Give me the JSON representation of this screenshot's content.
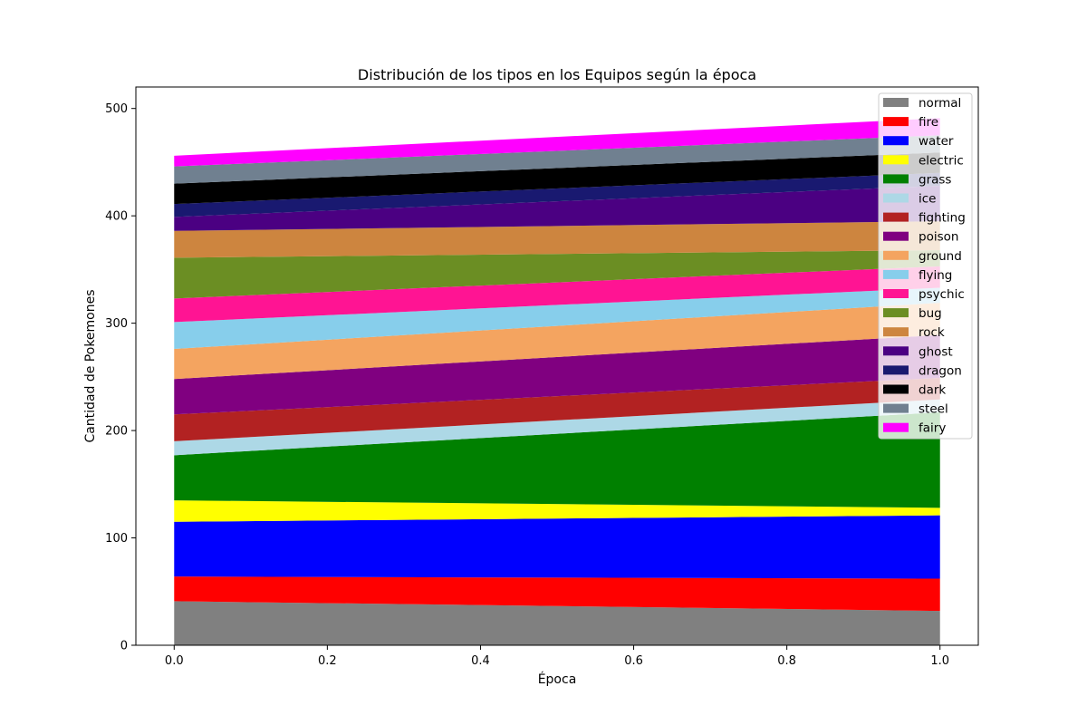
{
  "chart_data": {
    "type": "area",
    "stacked": true,
    "title": "Distribución de los tipos en los Equipos según la época",
    "xlabel": "Época",
    "ylabel": "Cantidad de Pokemones",
    "x": [
      0.0,
      1.0
    ],
    "xlim": [
      -0.05,
      1.05
    ],
    "ylim": [
      0,
      520
    ],
    "x_ticks": [
      "0.0",
      "0.2",
      "0.4",
      "0.6",
      "0.8",
      "1.0"
    ],
    "y_ticks": [
      "0",
      "100",
      "200",
      "300",
      "400",
      "500"
    ],
    "grid": false,
    "legend_position": "top-right",
    "series": [
      {
        "name": "normal",
        "color": "#808080",
        "values": [
          41,
          32
        ]
      },
      {
        "name": "fire",
        "color": "#ff0000",
        "values": [
          23,
          30
        ]
      },
      {
        "name": "water",
        "color": "#0000ff",
        "values": [
          51,
          59
        ]
      },
      {
        "name": "electric",
        "color": "#ffff00",
        "values": [
          20,
          7
        ]
      },
      {
        "name": "grass",
        "color": "#008000",
        "values": [
          42,
          89
        ]
      },
      {
        "name": "ice",
        "color": "#add8e6",
        "values": [
          13,
          12
        ]
      },
      {
        "name": "fighting",
        "color": "#b22222",
        "values": [
          25,
          20
        ]
      },
      {
        "name": "poison",
        "color": "#800080",
        "values": [
          33,
          40
        ]
      },
      {
        "name": "ground",
        "color": "#f4a460",
        "values": [
          28,
          30
        ]
      },
      {
        "name": "flying",
        "color": "#87ceeb",
        "values": [
          25,
          14
        ]
      },
      {
        "name": "psychic",
        "color": "#ff1493",
        "values": [
          22,
          20
        ]
      },
      {
        "name": "bug",
        "color": "#6b8e23",
        "values": [
          38,
          15
        ]
      },
      {
        "name": "rock",
        "color": "#cd853f",
        "values": [
          25,
          27
        ]
      },
      {
        "name": "ghost",
        "color": "#4b0082",
        "values": [
          13,
          33
        ]
      },
      {
        "name": "dragon",
        "color": "#191970",
        "values": [
          12,
          12
        ]
      },
      {
        "name": "dark",
        "color": "#000000",
        "values": [
          19,
          19
        ]
      },
      {
        "name": "steel",
        "color": "#708090",
        "values": [
          16,
          16
        ]
      },
      {
        "name": "fairy",
        "color": "#ff00ff",
        "values": [
          10,
          16
        ]
      }
    ]
  }
}
